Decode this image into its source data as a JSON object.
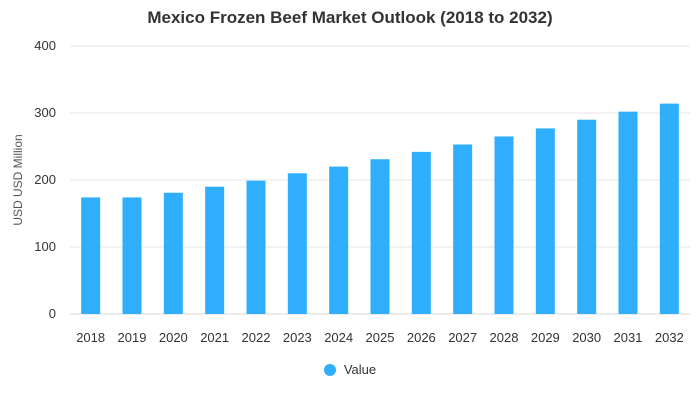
{
  "colors": {
    "bar": "#2eaefc",
    "grid": "#e6e6e6",
    "text": "#333333",
    "axis": "#d9d9d9"
  },
  "chart_data": {
    "type": "bar",
    "title": "Mexico Frozen Beef Market Outlook (2018 to 2032)",
    "xlabel": "",
    "ylabel": "USD USD Million",
    "ylim": [
      0,
      400
    ],
    "yticks": [
      0,
      100,
      200,
      300,
      400
    ],
    "grid": true,
    "legend_position": "bottom",
    "categories": [
      "2018",
      "2019",
      "2020",
      "2021",
      "2022",
      "2023",
      "2024",
      "2025",
      "2026",
      "2027",
      "2028",
      "2029",
      "2030",
      "2031",
      "2032"
    ],
    "series": [
      {
        "name": "Value",
        "values": [
          174,
          174,
          181,
          190,
          199,
          210,
          220,
          231,
          242,
          253,
          265,
          277,
          290,
          302,
          314
        ]
      }
    ]
  }
}
